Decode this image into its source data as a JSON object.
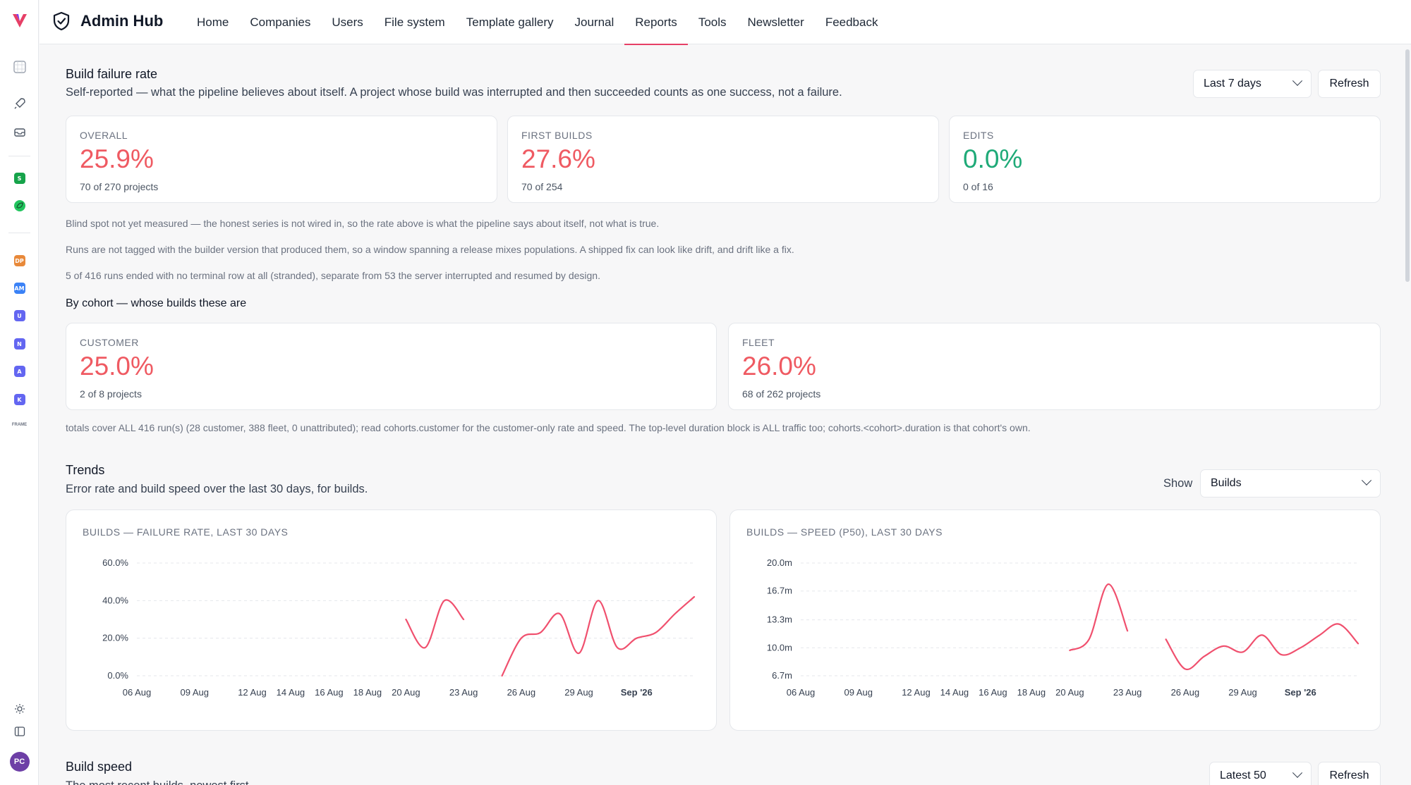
{
  "app": {
    "title": "Admin Hub"
  },
  "nav": {
    "items": [
      {
        "label": "Home",
        "active": false
      },
      {
        "label": "Companies",
        "active": false
      },
      {
        "label": "Users",
        "active": false
      },
      {
        "label": "File system",
        "active": false
      },
      {
        "label": "Template gallery",
        "active": false
      },
      {
        "label": "Journal",
        "active": false
      },
      {
        "label": "Reports",
        "active": true
      },
      {
        "label": "Tools",
        "active": false
      },
      {
        "label": "Newsletter",
        "active": false
      },
      {
        "label": "Feedback",
        "active": false
      }
    ]
  },
  "rail": {
    "badges": [
      {
        "text": "S",
        "color": "#16a34a"
      },
      {
        "text": "DP",
        "color": "#e8893a"
      },
      {
        "text": "AM",
        "color": "#3b82f6"
      },
      {
        "text": "U",
        "color": "#6366f1"
      },
      {
        "text": "N",
        "color": "#6366f1"
      },
      {
        "text": "A",
        "color": "#6366f1"
      },
      {
        "text": "K",
        "color": "#6366f1"
      }
    ],
    "tiny_label": "FRAME",
    "avatar": "PC"
  },
  "failure": {
    "title": "Build failure rate",
    "subtitle": "Self-reported — what the pipeline believes about itself. A project whose build was interrupted and then succeeded counts as one success, not a failure.",
    "range_select": "Last 7 days",
    "refresh": "Refresh",
    "cards": [
      {
        "label": "OVERALL",
        "value": "25.9%",
        "foot": "70 of 270 projects",
        "tone": "red"
      },
      {
        "label": "FIRST BUILDS",
        "value": "27.6%",
        "foot": "70 of 254",
        "tone": "red"
      },
      {
        "label": "EDITS",
        "value": "0.0%",
        "foot": "0 of 16",
        "tone": "green"
      }
    ],
    "notes": [
      "Blind spot not yet measured — the honest series is not wired in, so the rate above is what the pipeline says about itself, not what is true.",
      "Runs are not tagged with the builder version that produced them, so a window spanning a release mixes populations. A shipped fix can look like drift, and drift like a fix.",
      "5 of 416 runs ended with no terminal row at all (stranded), separate from 53 the server interrupted and resumed by design."
    ],
    "cohort_title": "By cohort — whose builds these are",
    "cohorts": [
      {
        "label": "CUSTOMER",
        "value": "25.0%",
        "foot": "2 of 8 projects"
      },
      {
        "label": "FLEET",
        "value": "26.0%",
        "foot": "68 of 262 projects"
      }
    ],
    "totals_note": "totals cover ALL 416 run(s) (28 customer, 388 fleet, 0 unattributed); read cohorts.customer for the customer-only rate and speed. The top-level duration block is ALL traffic too; cohorts.<cohort>.duration is that cohort's own."
  },
  "trends": {
    "title": "Trends",
    "subtitle": "Error rate and build speed over the last 30 days, for builds.",
    "show_label": "Show",
    "show_select": "Builds"
  },
  "speed_section": {
    "title": "Build speed",
    "subtitle": "The most recent builds, newest first.",
    "select": "Latest 50",
    "refresh": "Refresh"
  },
  "chart_data": [
    {
      "type": "line",
      "title": "BUILDS — FAILURE RATE, LAST 30 DAYS",
      "color": "#f0506e",
      "x_ticks": [
        "06 Aug",
        "09 Aug",
        "12 Aug",
        "14 Aug",
        "16 Aug",
        "18 Aug",
        "20 Aug",
        "23 Aug",
        "26 Aug",
        "29 Aug",
        "Sep '26"
      ],
      "x_tick_days": [
        6,
        9,
        12,
        14,
        16,
        18,
        20,
        23,
        26,
        29,
        32
      ],
      "x_range": [
        6,
        35
      ],
      "y_ticks": [
        "0.0%",
        "20.0%",
        "40.0%",
        "60.0%"
      ],
      "y_tick_values": [
        0,
        20,
        40,
        60
      ],
      "ylim": [
        0,
        60
      ],
      "segments": [
        [
          [
            20,
            30
          ],
          [
            21,
            15
          ],
          [
            22,
            40
          ],
          [
            23,
            30
          ]
        ],
        [
          [
            25,
            0
          ],
          [
            26,
            20
          ],
          [
            27,
            23
          ],
          [
            28,
            33
          ],
          [
            29,
            12
          ],
          [
            30,
            40
          ],
          [
            31,
            15
          ],
          [
            32,
            20
          ],
          [
            33,
            23
          ],
          [
            34,
            33
          ],
          [
            35,
            42
          ]
        ]
      ]
    },
    {
      "type": "line",
      "title": "BUILDS — SPEED (P50), LAST 30 DAYS",
      "color": "#f0506e",
      "x_ticks": [
        "06 Aug",
        "09 Aug",
        "12 Aug",
        "14 Aug",
        "16 Aug",
        "18 Aug",
        "20 Aug",
        "23 Aug",
        "26 Aug",
        "29 Aug",
        "Sep '26"
      ],
      "x_tick_days": [
        6,
        9,
        12,
        14,
        16,
        18,
        20,
        23,
        26,
        29,
        32
      ],
      "x_range": [
        6,
        35
      ],
      "y_ticks": [
        "6.7m",
        "10.0m",
        "13.3m",
        "16.7m",
        "20.0m"
      ],
      "y_tick_values": [
        6.7,
        10.0,
        13.3,
        16.7,
        20.0
      ],
      "ylim": [
        6.7,
        20.0
      ],
      "segments": [
        [
          [
            20,
            9.7
          ],
          [
            21,
            11.0
          ],
          [
            22,
            17.5
          ],
          [
            23,
            12.0
          ]
        ],
        [
          [
            25,
            11.0
          ],
          [
            26,
            7.5
          ],
          [
            27,
            9.0
          ],
          [
            28,
            10.2
          ],
          [
            29,
            9.5
          ],
          [
            30,
            11.5
          ],
          [
            31,
            9.2
          ],
          [
            32,
            10.0
          ],
          [
            33,
            11.5
          ],
          [
            34,
            12.8
          ],
          [
            35,
            10.5
          ]
        ]
      ]
    }
  ]
}
